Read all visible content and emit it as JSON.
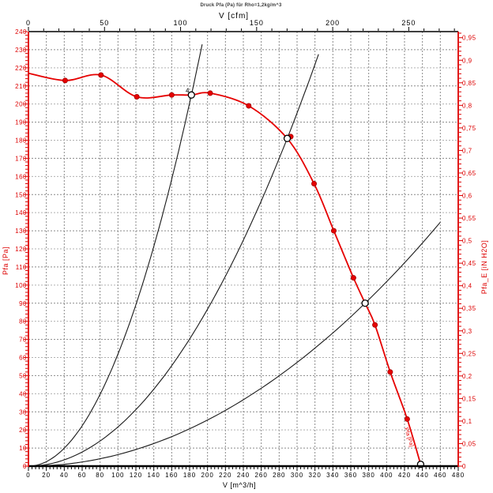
{
  "chart_data": {
    "type": "line",
    "title": "Druck Pfa (Pa) für Rho=1,2kg/m^3",
    "axes": {
      "bottom": {
        "label": "V [m^3/h]",
        "min": 0,
        "max": 480,
        "major": 20,
        "minor": 4,
        "color": "#000000"
      },
      "top": {
        "label": "V [cfm]",
        "min": 0,
        "max": 282,
        "major": 50,
        "minor": 10,
        "unit_to_m3h": 1.699011,
        "color": "#000000"
      },
      "left": {
        "label": "Pfa [Pa]",
        "min": 0,
        "max": 240,
        "major": 10,
        "minor": 2,
        "color": "#dd0000"
      },
      "right": {
        "label": "Pfa_E [iN H2O]",
        "min": 0,
        "max": 0.96,
        "major": 0.05,
        "minor": 0.01,
        "unit_to_pa": 249.089,
        "color": "#dd0000"
      }
    },
    "grid": {
      "v_step": 20,
      "h_step": 10,
      "color_dark": "#8a8a8a",
      "color_light": "#b0b0b0"
    },
    "fan_curve": {
      "color": "#e60000",
      "label": "Pfa [Pa]",
      "label_pos": {
        "v": 420,
        "p": 21,
        "rotate": 73
      },
      "points": [
        [
          0,
          217
        ],
        [
          41,
          213
        ],
        [
          81,
          216
        ],
        [
          121,
          204
        ],
        [
          160,
          205
        ],
        [
          182,
          205
        ],
        [
          203,
          206
        ],
        [
          246,
          199
        ],
        [
          289,
          181
        ],
        [
          319,
          156
        ],
        [
          341,
          130
        ],
        [
          363,
          104
        ],
        [
          376,
          90
        ],
        [
          387,
          78
        ],
        [
          404,
          52
        ],
        [
          423,
          26
        ],
        [
          438,
          1
        ]
      ],
      "dot_markers": [
        [
          41,
          213
        ],
        [
          81,
          216
        ],
        [
          121,
          204
        ],
        [
          160,
          205
        ],
        [
          203,
          206
        ],
        [
          246,
          199
        ],
        [
          293,
          182
        ],
        [
          319,
          156
        ],
        [
          341,
          130
        ],
        [
          363,
          104
        ],
        [
          387,
          78
        ],
        [
          404,
          52
        ],
        [
          423,
          26
        ]
      ],
      "operating_points": [
        [
          182,
          205
        ],
        [
          289,
          181
        ],
        [
          376,
          90
        ],
        [
          438,
          1
        ]
      ]
    },
    "system_curves": [
      {
        "k": 0.00619,
        "v_max": 194
      },
      {
        "k": 0.002167,
        "v_max": 324
      },
      {
        "k": 0.0006366,
        "v_max": 460
      }
    ],
    "annotations": [
      {
        "text": "4",
        "v": 177.5,
        "p": 207.5
      }
    ]
  }
}
